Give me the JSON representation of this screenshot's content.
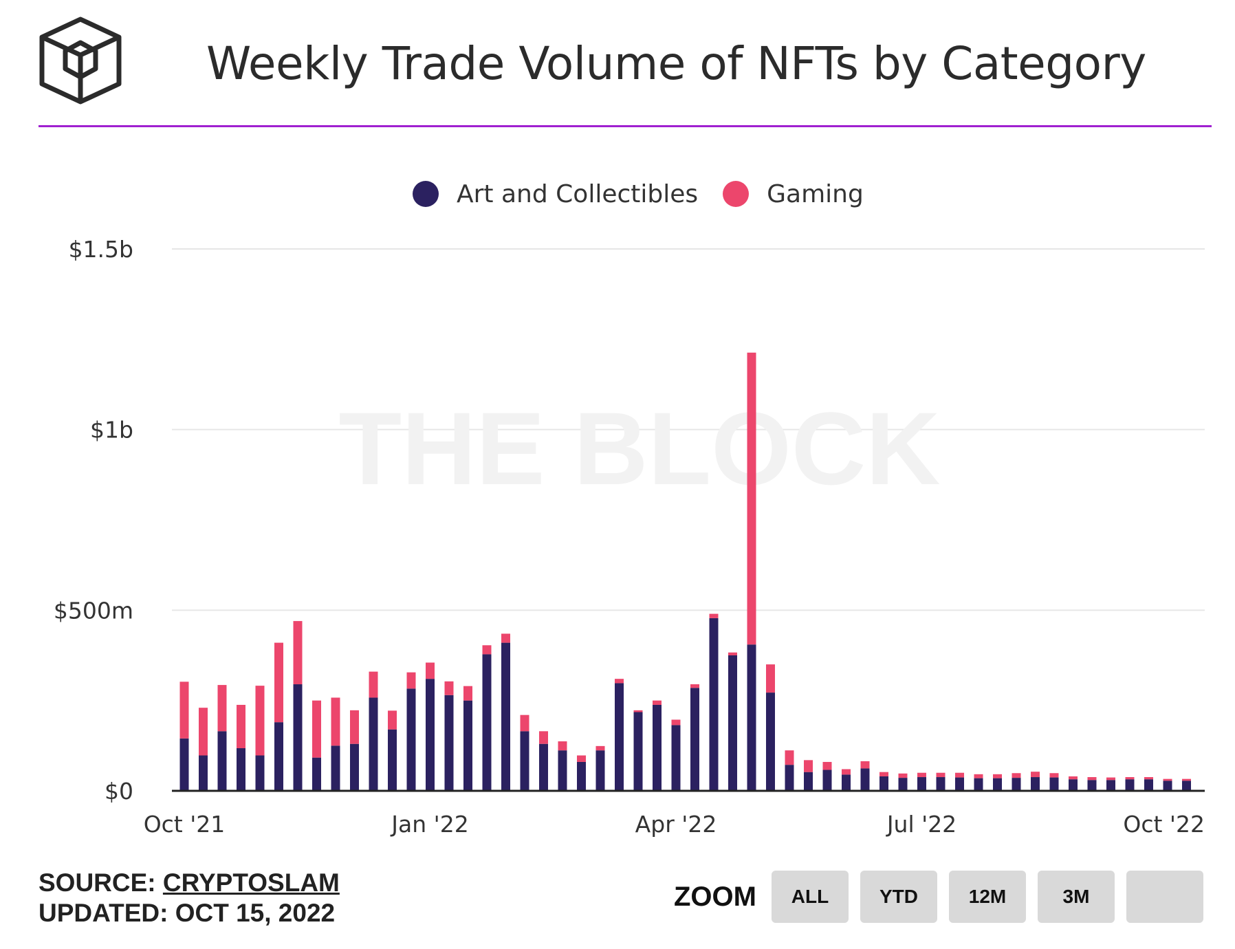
{
  "header": {
    "title": "Weekly Trade Volume of NFTs by Category",
    "logo_icon": "the-block-cube-logo"
  },
  "colors": {
    "accent_rule": "#a020d0",
    "art": "#2b2160",
    "gaming": "#ec466c",
    "gridline": "#e6e6e6",
    "watermark": "#f2f2f2"
  },
  "legend": [
    {
      "label": "Art and Collectibles",
      "color": "#2b2160"
    },
    {
      "label": "Gaming",
      "color": "#ec466c"
    }
  ],
  "watermark": "THE BLOCK",
  "chart_data": {
    "type": "bar",
    "stacked": true,
    "title": "Weekly Trade Volume of NFTs by Category",
    "xlabel": "",
    "ylabel": "",
    "ylim": [
      0,
      1500
    ],
    "units": "millions USD",
    "y_ticks": [
      {
        "value": 0,
        "label": "$0"
      },
      {
        "value": 500,
        "label": "$500m"
      },
      {
        "value": 1000,
        "label": "$1b"
      },
      {
        "value": 1500,
        "label": "$1.5b"
      }
    ],
    "x_ticks": [
      {
        "index": 0,
        "label": "Oct '21"
      },
      {
        "index": 13,
        "label": "Jan '22"
      },
      {
        "index": 26,
        "label": "Apr '22"
      },
      {
        "index": 39,
        "label": "Jul '22"
      },
      {
        "index": 52,
        "label": "Oct '22"
      }
    ],
    "series": [
      {
        "name": "Art and Collectibles",
        "values": [
          145,
          98,
          165,
          118,
          98,
          190,
          295,
          92,
          125,
          130,
          258,
          170,
          283,
          310,
          265,
          250,
          378,
          410,
          165,
          130,
          112,
          80,
          112,
          298,
          218,
          238,
          182,
          285,
          478,
          375,
          405,
          272,
          72,
          52,
          58,
          45,
          62,
          40,
          36,
          38,
          38,
          37,
          35,
          35,
          36,
          38,
          37,
          32,
          30,
          30,
          32,
          32,
          28,
          28
        ]
      },
      {
        "name": "Gaming",
        "values": [
          157,
          132,
          128,
          120,
          193,
          220,
          175,
          158,
          133,
          93,
          72,
          52,
          45,
          45,
          38,
          40,
          25,
          25,
          45,
          35,
          25,
          18,
          12,
          12,
          5,
          12,
          15,
          10,
          12,
          8,
          808,
          78,
          40,
          33,
          22,
          15,
          20,
          12,
          12,
          12,
          12,
          13,
          11,
          11,
          13,
          15,
          12,
          8,
          8,
          7,
          6,
          6,
          5,
          5
        ]
      }
    ]
  },
  "footer": {
    "source_prefix": "SOURCE: ",
    "source_link": "CRYPTOSLAM",
    "updated": "UPDATED: OCT 15, 2022"
  },
  "zoom": {
    "label": "ZOOM",
    "buttons": [
      "ALL",
      "YTD",
      "12M",
      "3M",
      ""
    ]
  }
}
